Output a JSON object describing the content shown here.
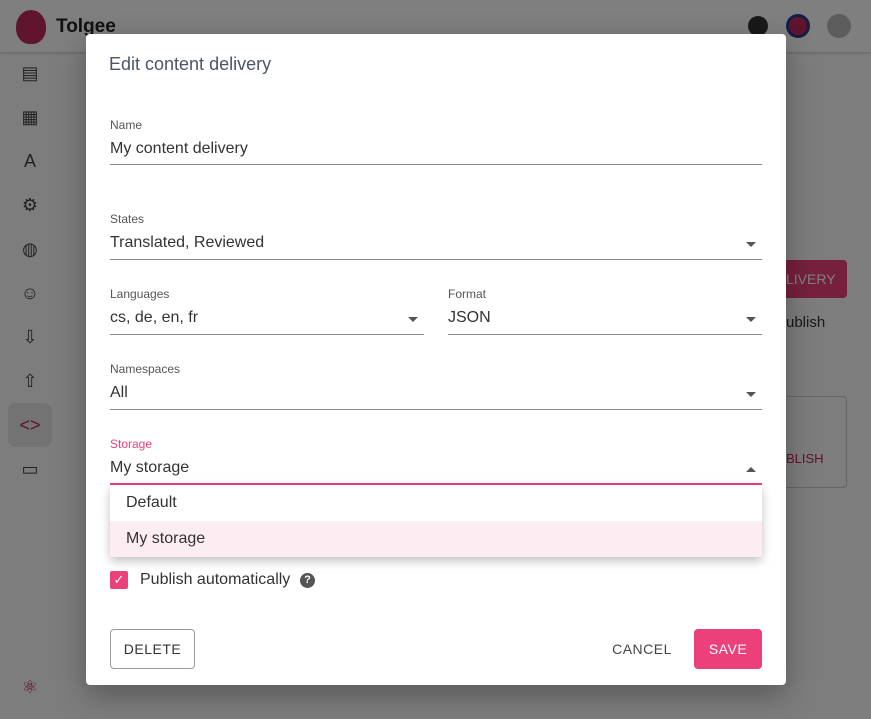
{
  "app": {
    "brand": "Tolgee",
    "sidebar_icons": [
      "translations-icon",
      "dashboard-icon",
      "languages-icon",
      "settings-icon",
      "globe-icon",
      "members-icon",
      "export-icon",
      "import-icon",
      "code-icon",
      "devices-icon"
    ]
  },
  "background": {
    "button_fragment": "LIVERY",
    "text_fragment": "ublish",
    "publish_fragment": "BLISH"
  },
  "dialog": {
    "title": "Edit content delivery",
    "name": {
      "label": "Name",
      "value": "My content delivery"
    },
    "states": {
      "label": "States",
      "value": "Translated, Reviewed"
    },
    "languages": {
      "label": "Languages",
      "value": "cs, de, en, fr"
    },
    "format": {
      "label": "Format",
      "value": "JSON"
    },
    "namespaces": {
      "label": "Namespaces",
      "value": "All"
    },
    "storage": {
      "label": "Storage",
      "value": "My storage",
      "options": [
        "Default",
        "My storage"
      ]
    },
    "publish_automatically": {
      "label": "Publish automatically",
      "checked": true
    },
    "delete_label": "DELETE",
    "cancel_label": "CANCEL",
    "save_label": "SAVE"
  },
  "colors": {
    "accent": "#ec407a"
  }
}
